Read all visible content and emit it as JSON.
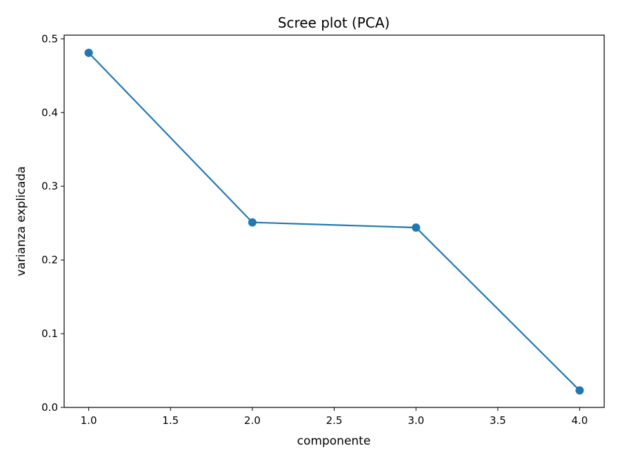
{
  "chart_data": {
    "type": "line",
    "title": "Scree plot (PCA)",
    "xlabel": "componente",
    "ylabel": "varianza explicada",
    "x": [
      1,
      2,
      3,
      4
    ],
    "series": [
      {
        "values": [
          0.481,
          0.251,
          0.244,
          0.023
        ],
        "color": "#1f77b4",
        "marker": "circle"
      }
    ],
    "xlim": [
      0.85,
      4.15
    ],
    "ylim": [
      0.0,
      0.505
    ],
    "xticks": [
      1.0,
      1.5,
      2.0,
      2.5,
      3.0,
      3.5,
      4.0
    ],
    "xtick_labels": [
      "1.0",
      "1.5",
      "2.0",
      "2.5",
      "3.0",
      "3.5",
      "4.0"
    ],
    "yticks": [
      0.0,
      0.1,
      0.2,
      0.3,
      0.4,
      0.5
    ],
    "ytick_labels": [
      "0.0",
      "0.1",
      "0.2",
      "0.3",
      "0.4",
      "0.5"
    ],
    "grid": false,
    "legend": false
  }
}
